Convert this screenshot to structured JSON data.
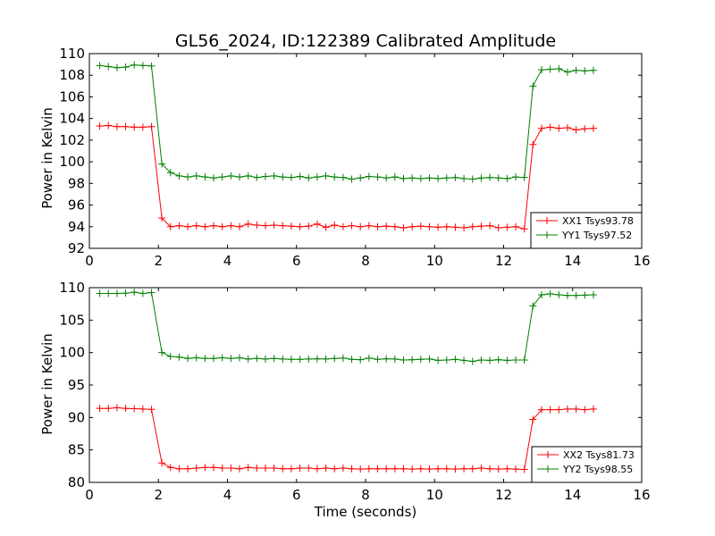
{
  "chart_data": [
    {
      "type": "line",
      "title": "GL56_2024, ID:122389 Calibrated Amplitude",
      "xlabel": "",
      "ylabel": "Power in Kelvin",
      "xlim": [
        0,
        16
      ],
      "ylim": [
        92,
        110
      ],
      "xticks": [
        "0",
        "2",
        "4",
        "6",
        "8",
        "10",
        "12",
        "14",
        "16"
      ],
      "yticks": [
        "92",
        "94",
        "96",
        "98",
        "100",
        "102",
        "104",
        "106",
        "108",
        "110"
      ],
      "legend_position": "bottom-right",
      "grid": false,
      "x": [
        0.3,
        0.55,
        0.8,
        1.05,
        1.3,
        1.55,
        1.8,
        2.1,
        2.35,
        2.6,
        2.85,
        3.1,
        3.35,
        3.6,
        3.85,
        4.1,
        4.35,
        4.6,
        4.85,
        5.1,
        5.35,
        5.6,
        5.85,
        6.1,
        6.35,
        6.6,
        6.85,
        7.1,
        7.35,
        7.6,
        7.85,
        8.1,
        8.35,
        8.6,
        8.85,
        9.1,
        9.35,
        9.6,
        9.85,
        10.1,
        10.35,
        10.6,
        10.85,
        11.1,
        11.35,
        11.6,
        11.85,
        12.1,
        12.35,
        12.6,
        12.85,
        13.1,
        13.35,
        13.6,
        13.85,
        14.1,
        14.35,
        14.6
      ],
      "series": [
        {
          "name": "XX1 Tsys93.78",
          "color": "#ff0000",
          "values": [
            103.3,
            103.35,
            103.25,
            103.25,
            103.2,
            103.2,
            103.25,
            94.8,
            94.0,
            94.1,
            94.0,
            94.1,
            94.0,
            94.1,
            94.0,
            94.1,
            94.0,
            94.25,
            94.15,
            94.1,
            94.15,
            94.1,
            94.05,
            94.0,
            94.05,
            94.25,
            93.95,
            94.15,
            94.0,
            94.1,
            94.0,
            94.1,
            94.0,
            94.05,
            94.0,
            93.9,
            94.0,
            94.05,
            94.0,
            93.95,
            94.0,
            93.95,
            93.9,
            94.0,
            94.05,
            94.1,
            93.9,
            93.95,
            94.0,
            93.8,
            101.6,
            103.1,
            103.2,
            103.1,
            103.15,
            102.95,
            103.05,
            103.1
          ]
        },
        {
          "name": "YY1 Tsys97.52",
          "color": "#008000",
          "values": [
            108.9,
            108.8,
            108.7,
            108.75,
            108.95,
            108.9,
            108.85,
            99.8,
            99.0,
            98.7,
            98.6,
            98.7,
            98.6,
            98.5,
            98.6,
            98.7,
            98.6,
            98.7,
            98.55,
            98.65,
            98.7,
            98.6,
            98.55,
            98.65,
            98.5,
            98.6,
            98.7,
            98.6,
            98.55,
            98.4,
            98.5,
            98.65,
            98.6,
            98.5,
            98.6,
            98.45,
            98.5,
            98.45,
            98.5,
            98.45,
            98.5,
            98.55,
            98.45,
            98.4,
            98.5,
            98.55,
            98.5,
            98.45,
            98.6,
            98.55,
            107.0,
            108.5,
            108.55,
            108.6,
            108.3,
            108.45,
            108.4,
            108.45
          ]
        }
      ]
    },
    {
      "type": "line",
      "title": "",
      "xlabel": "Time (seconds)",
      "ylabel": "Power in Kelvin",
      "xlim": [
        0,
        16
      ],
      "ylim": [
        80,
        110
      ],
      "xticks": [
        "0",
        "2",
        "4",
        "6",
        "8",
        "10",
        "12",
        "14",
        "16"
      ],
      "yticks": [
        "80",
        "85",
        "90",
        "95",
        "100",
        "105",
        "110"
      ],
      "legend_position": "bottom-right",
      "grid": false,
      "x": [
        0.3,
        0.55,
        0.8,
        1.05,
        1.3,
        1.55,
        1.8,
        2.1,
        2.35,
        2.6,
        2.85,
        3.1,
        3.35,
        3.6,
        3.85,
        4.1,
        4.35,
        4.6,
        4.85,
        5.1,
        5.35,
        5.6,
        5.85,
        6.1,
        6.35,
        6.6,
        6.85,
        7.1,
        7.35,
        7.6,
        7.85,
        8.1,
        8.35,
        8.6,
        8.85,
        9.1,
        9.35,
        9.6,
        9.85,
        10.1,
        10.35,
        10.6,
        10.85,
        11.1,
        11.35,
        11.6,
        11.85,
        12.1,
        12.35,
        12.6,
        12.85,
        13.1,
        13.35,
        13.6,
        13.85,
        14.1,
        14.35,
        14.6
      ],
      "series": [
        {
          "name": "XX2 Tsys81.73",
          "color": "#ff0000",
          "values": [
            91.4,
            91.4,
            91.5,
            91.4,
            91.35,
            91.3,
            91.25,
            83.0,
            82.3,
            82.1,
            82.1,
            82.2,
            82.3,
            82.3,
            82.2,
            82.2,
            82.1,
            82.3,
            82.2,
            82.2,
            82.2,
            82.1,
            82.1,
            82.2,
            82.2,
            82.1,
            82.2,
            82.1,
            82.2,
            82.1,
            82.05,
            82.1,
            82.1,
            82.1,
            82.1,
            82.1,
            82.05,
            82.1,
            82.05,
            82.1,
            82.1,
            82.05,
            82.1,
            82.1,
            82.2,
            82.1,
            82.05,
            82.1,
            82.05,
            82.0,
            89.7,
            91.2,
            91.2,
            91.2,
            91.3,
            91.3,
            91.2,
            91.3
          ]
        },
        {
          "name": "YY2 Tsys98.55",
          "color": "#008000",
          "values": [
            109.1,
            109.1,
            109.1,
            109.15,
            109.3,
            109.1,
            109.25,
            100.0,
            99.4,
            99.3,
            99.1,
            99.2,
            99.1,
            99.1,
            99.2,
            99.1,
            99.2,
            99.0,
            99.1,
            99.0,
            99.1,
            99.0,
            98.95,
            98.95,
            99.0,
            99.05,
            99.0,
            99.1,
            99.15,
            98.95,
            98.9,
            99.15,
            98.95,
            99.05,
            99.0,
            98.85,
            98.9,
            98.95,
            99.0,
            98.8,
            98.85,
            98.95,
            98.8,
            98.65,
            98.85,
            98.8,
            98.9,
            98.8,
            98.85,
            98.85,
            107.2,
            108.9,
            109.05,
            108.9,
            108.8,
            108.8,
            108.85,
            108.9
          ]
        }
      ]
    }
  ]
}
